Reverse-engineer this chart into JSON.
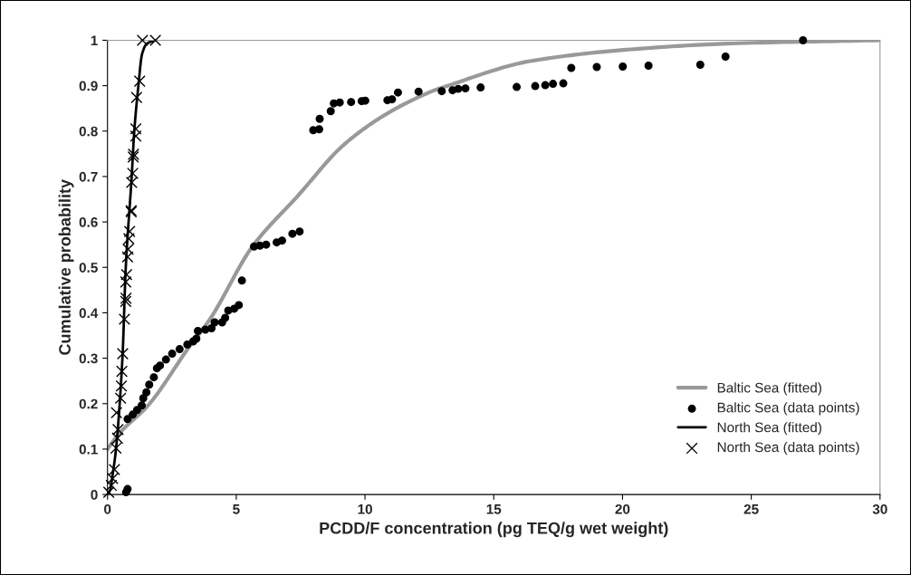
{
  "chart_data": {
    "type": "scatter",
    "xlabel": "PCDD/F concentration (pg TEQ/g wet weight)",
    "ylabel": "Cumulative probability",
    "xlim": [
      0,
      30
    ],
    "xticks": [
      0,
      5,
      10,
      15,
      20,
      25,
      30
    ],
    "ylim": [
      0,
      1
    ],
    "yticks": [
      0,
      0.1,
      0.2,
      0.3,
      0.4,
      0.5,
      0.6,
      0.7,
      0.8,
      0.9,
      1
    ],
    "grid": false,
    "legend": "bottom right",
    "series": [
      {
        "name": "Baltic Sea (fitted)",
        "type": "line",
        "color": "#999999",
        "line_style": "solid",
        "marker": "none",
        "x": [
          0,
          0.45,
          1.62,
          3.16,
          3.98,
          5.63,
          7.4,
          9.16,
          10.93,
          12.7,
          13.01,
          16.41,
          20.34,
          24.27,
          30
        ],
        "values": [
          0.1,
          0.134,
          0.199,
          0.324,
          0.386,
          0.546,
          0.658,
          0.769,
          0.841,
          0.89,
          0.896,
          0.954,
          0.98,
          0.993,
          1.0
        ]
      },
      {
        "name": "Baltic Sea (data points)",
        "color": "#000000",
        "marker": "circle",
        "x": [
          0.72,
          0.78,
          0.78,
          0.98,
          1.15,
          1.33,
          1.39,
          1.51,
          1.62,
          1.8,
          1.92,
          2.04,
          2.27,
          2.51,
          2.8,
          3.1,
          3.33,
          3.45,
          3.51,
          3.8,
          4.04,
          4.16,
          4.45,
          4.57,
          4.69,
          4.92,
          5.1,
          5.22,
          5.69,
          5.92,
          6.16,
          6.57,
          6.78,
          7.18,
          7.46,
          7.99,
          8.22,
          8.24,
          8.67,
          8.79,
          9.02,
          9.46,
          9.87,
          10.01,
          10.87,
          11.05,
          11.28,
          12.08,
          12.98,
          13.4,
          13.62,
          13.9,
          14.49,
          15.89,
          16.61,
          17.0,
          17.3,
          17.7,
          18.01,
          19.0,
          20.01,
          21.01,
          23.02,
          24.0,
          27.01
        ],
        "values": [
          0.005,
          0.012,
          0.166,
          0.176,
          0.186,
          0.196,
          0.212,
          0.225,
          0.242,
          0.258,
          0.278,
          0.284,
          0.297,
          0.31,
          0.32,
          0.33,
          0.337,
          0.343,
          0.36,
          0.363,
          0.366,
          0.379,
          0.379,
          0.389,
          0.405,
          0.409,
          0.417,
          0.471,
          0.546,
          0.548,
          0.55,
          0.555,
          0.559,
          0.574,
          0.579,
          0.802,
          0.804,
          0.827,
          0.844,
          0.861,
          0.863,
          0.864,
          0.866,
          0.867,
          0.868,
          0.87,
          0.885,
          0.887,
          0.888,
          0.89,
          0.893,
          0.894,
          0.896,
          0.897,
          0.899,
          0.901,
          0.904,
          0.905,
          0.939,
          0.941,
          0.942,
          0.944,
          0.946,
          0.964,
          1.0
        ]
      },
      {
        "name": "North Sea (fitted)",
        "type": "line",
        "color": "#000000",
        "line_style": "solid",
        "marker": "none",
        "x": [
          0,
          0.1,
          0.21,
          0.33,
          0.58,
          0.71,
          0.94,
          1.04,
          1.2,
          1.34,
          1.52,
          1.83
        ],
        "values": [
          0,
          0.01,
          0.048,
          0.1,
          0.3,
          0.5,
          0.7,
          0.8,
          0.9,
          0.969,
          0.992,
          1.0
        ]
      },
      {
        "name": "North Sea (data points)",
        "color": "#000000",
        "marker": "cross",
        "x": [
          0.05,
          0.15,
          0.2,
          0.27,
          0.33,
          0.35,
          0.39,
          0.41,
          0.51,
          0.54,
          0.56,
          0.59,
          0.66,
          0.71,
          0.72,
          0.71,
          0.74,
          0.78,
          0.8,
          0.83,
          0.86,
          0.92,
          0.92,
          0.94,
          0.98,
          1.0,
          1.01,
          1.1,
          1.1,
          1.13,
          1.25,
          1.36,
          1.86
        ],
        "values": [
          0.005,
          0.02,
          0.035,
          0.055,
          0.102,
          0.18,
          0.124,
          0.143,
          0.212,
          0.239,
          0.271,
          0.31,
          0.386,
          0.425,
          0.432,
          0.468,
          0.484,
          0.523,
          0.54,
          0.563,
          0.579,
          0.622,
          0.625,
          0.687,
          0.707,
          0.743,
          0.749,
          0.789,
          0.805,
          0.874,
          0.91,
          1.0,
          1.0
        ]
      }
    ]
  }
}
